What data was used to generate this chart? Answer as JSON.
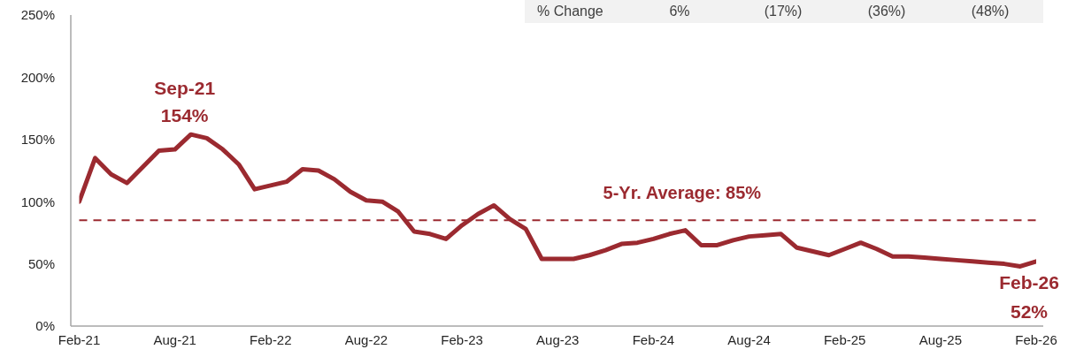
{
  "chart_data": {
    "type": "line",
    "x": [
      "2021-02",
      "2021-03",
      "2021-04",
      "2021-05",
      "2021-06",
      "2021-07",
      "2021-08",
      "2021-09",
      "2021-10",
      "2021-11",
      "2021-12",
      "2022-01",
      "2022-02",
      "2022-03",
      "2022-04",
      "2022-05",
      "2022-06",
      "2022-07",
      "2022-08",
      "2022-09",
      "2022-10",
      "2022-11",
      "2022-12",
      "2023-01",
      "2023-02",
      "2023-03",
      "2023-04",
      "2023-05",
      "2023-06",
      "2023-07",
      "2023-08",
      "2023-09",
      "2023-10",
      "2023-11",
      "2023-12",
      "2024-01",
      "2024-02",
      "2024-03",
      "2024-04",
      "2024-05",
      "2024-06",
      "2024-07",
      "2024-08",
      "2024-09",
      "2024-10",
      "2024-11",
      "2024-12",
      "2025-01",
      "2025-02",
      "2025-03",
      "2025-04",
      "2025-05",
      "2025-06",
      "2025-07",
      "2025-08",
      "2025-09",
      "2025-10",
      "2025-11",
      "2025-12",
      "2026-01",
      "2026-02"
    ],
    "values": [
      100,
      135,
      122,
      115,
      128,
      141,
      142,
      154,
      151,
      142,
      130,
      110,
      113,
      116,
      126,
      125,
      118,
      108,
      101,
      100,
      92,
      76,
      74,
      70,
      81,
      90,
      97,
      86,
      78,
      54,
      54,
      54,
      57,
      61,
      66,
      67,
      70,
      74,
      77,
      65,
      65,
      69,
      72,
      73,
      74,
      63,
      60,
      57,
      62,
      67,
      62,
      56,
      56,
      55,
      54,
      53,
      52,
      51,
      50,
      48,
      52
    ],
    "color": "#9b2a30",
    "marker": "none",
    "line_style": "solid",
    "grid": false,
    "xlim": [
      "2021-02",
      "2026-02"
    ],
    "xticks": [
      {
        "value": "2021-02",
        "label": "Feb-21"
      },
      {
        "value": "2021-08",
        "label": "Aug-21"
      },
      {
        "value": "2022-02",
        "label": "Feb-22"
      },
      {
        "value": "2022-08",
        "label": "Aug-22"
      },
      {
        "value": "2023-02",
        "label": "Feb-23"
      },
      {
        "value": "2023-08",
        "label": "Aug-23"
      },
      {
        "value": "2024-02",
        "label": "Feb-24"
      },
      {
        "value": "2024-08",
        "label": "Aug-24"
      },
      {
        "value": "2025-02",
        "label": "Feb-25"
      },
      {
        "value": "2025-08",
        "label": "Aug-25"
      },
      {
        "value": "2026-02",
        "label": "Feb-26"
      }
    ],
    "ylim": [
      0,
      250
    ],
    "yticks": [
      {
        "value": 0,
        "label": "0%"
      },
      {
        "value": 50,
        "label": "50%"
      },
      {
        "value": 100,
        "label": "100%"
      },
      {
        "value": 150,
        "label": "150%"
      },
      {
        "value": 200,
        "label": "200%"
      },
      {
        "value": 250,
        "label": "250%"
      }
    ],
    "ref_lines": [
      {
        "axis": "y",
        "value": 85,
        "label": "5-Yr. Average: 85%",
        "color": "#9b2a30",
        "line_style": "dashed"
      }
    ],
    "annotations": [
      {
        "text": "Sep-21\n154%",
        "x": "2021-09",
        "y": 154
      },
      {
        "text": "Feb-26\n52%",
        "x": "2026-02",
        "y": 52
      },
      "% Change",
      "6%",
      "(17%)",
      "(36%)",
      "(48%)"
    ]
  }
}
